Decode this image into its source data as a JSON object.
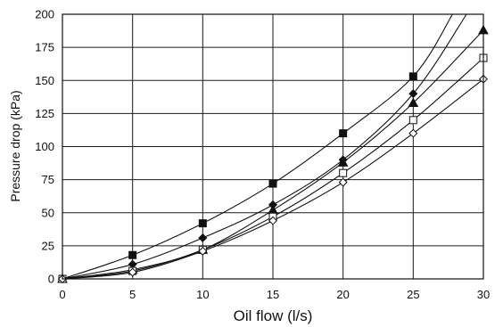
{
  "chart_data": {
    "type": "line",
    "xlabel": "Oil flow (l/s)",
    "ylabel": "Pressure drop (kPa)",
    "xlim": [
      0,
      30
    ],
    "ylim": [
      0,
      200
    ],
    "x_ticks": [
      0,
      5,
      10,
      15,
      20,
      25,
      30
    ],
    "y_ticks": [
      0,
      25,
      50,
      75,
      100,
      125,
      150,
      175,
      200
    ],
    "grid": true,
    "legend": "none",
    "x": [
      0,
      5,
      10,
      15,
      20,
      25,
      30
    ],
    "series": [
      {
        "marker": "filled-square",
        "values": [
          0,
          18,
          42,
          72,
          110,
          153,
          null
        ],
        "curve_end": [
          27.8,
          200
        ]
      },
      {
        "marker": "filled-diamond",
        "values": [
          0,
          11,
          31,
          56,
          90,
          140,
          null
        ],
        "curve_end": [
          28.8,
          200
        ]
      },
      {
        "marker": "filled-triangle",
        "values": [
          0,
          7,
          22,
          52,
          88,
          133,
          188
        ],
        "curve_end": [
          30,
          188
        ]
      },
      {
        "marker": "open-square",
        "values": [
          0,
          6,
          22,
          47,
          80,
          120,
          167
        ],
        "curve_end": [
          30,
          167
        ]
      },
      {
        "marker": "open-diamond",
        "values": [
          0,
          5,
          21,
          44,
          73,
          110,
          151
        ],
        "curve_end": [
          30,
          151
        ]
      }
    ]
  }
}
